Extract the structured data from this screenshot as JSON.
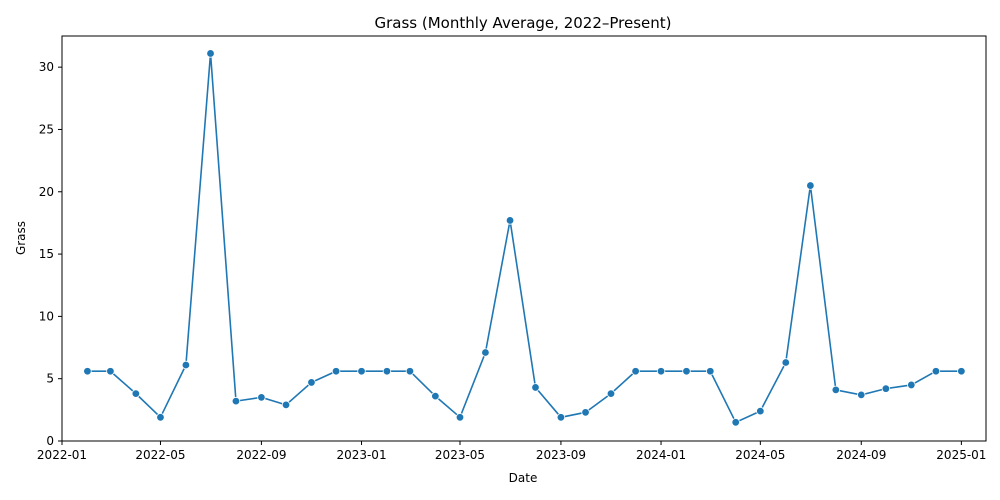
{
  "chart_data": {
    "type": "line",
    "title": "Grass (Monthly Average, 2022–Present)",
    "xlabel": "Date",
    "ylabel": "Grass",
    "xlim": [
      "2022-01-01",
      "2025-01-31"
    ],
    "ylim": [
      0,
      32.5
    ],
    "x_ticks": [
      "2022-01",
      "2022-05",
      "2022-09",
      "2023-01",
      "2023-05",
      "2023-09",
      "2024-01",
      "2024-05",
      "2024-09",
      "2025-01"
    ],
    "y_ticks": [
      0,
      5,
      10,
      15,
      20,
      25,
      30
    ],
    "grid": false,
    "color": "#1f77b4",
    "markers": true,
    "series": [
      {
        "x": [
          "2022-02",
          "2022-03",
          "2022-04",
          "2022-05",
          "2022-06",
          "2022-07",
          "2022-08",
          "2022-09",
          "2022-10",
          "2022-11",
          "2022-12",
          "2023-01",
          "2023-02",
          "2023-03",
          "2023-04",
          "2023-05",
          "2023-06",
          "2023-07",
          "2023-08",
          "2023-09",
          "2023-10",
          "2023-11",
          "2023-12",
          "2024-01",
          "2024-02",
          "2024-03",
          "2024-04",
          "2024-05",
          "2024-06",
          "2024-07",
          "2024-08",
          "2024-09",
          "2024-10",
          "2024-11",
          "2024-12",
          "2025-01"
        ],
        "values": [
          5.6,
          5.6,
          3.8,
          1.9,
          6.1,
          31.1,
          3.2,
          3.5,
          2.9,
          4.7,
          5.6,
          5.6,
          5.6,
          5.6,
          3.6,
          1.9,
          7.1,
          17.7,
          4.3,
          1.9,
          2.3,
          3.8,
          5.6,
          5.6,
          5.6,
          5.6,
          1.5,
          2.4,
          6.3,
          20.5,
          4.1,
          3.7,
          4.2,
          4.5,
          5.6,
          5.6
        ]
      }
    ]
  }
}
